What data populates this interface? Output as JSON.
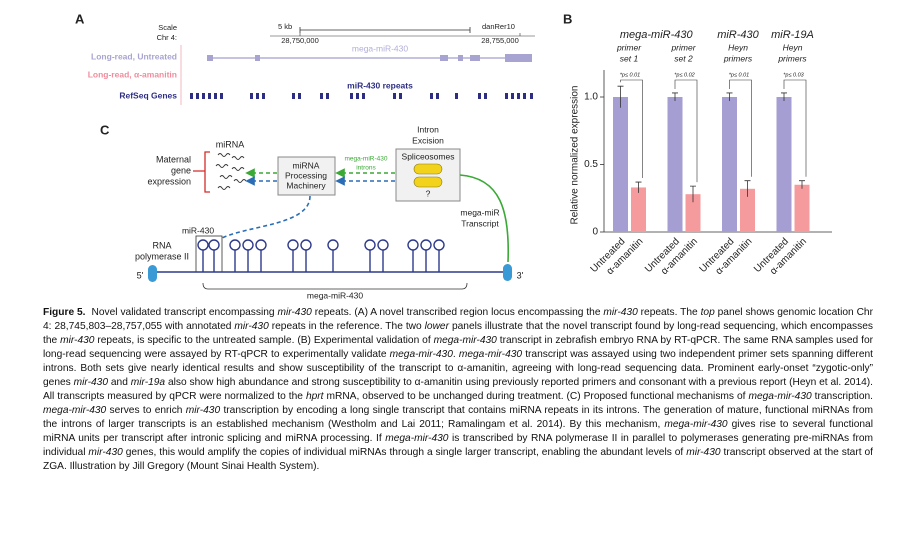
{
  "panel_a": {
    "label": "A",
    "scale": "Scale",
    "chr": "Chr 4:",
    "scale_bar": "5 kb",
    "assembly": "danRer10",
    "positions": [
      "28,750,000",
      "28,755,000"
    ],
    "tracks": [
      "Long-read, Untreated",
      "Long-read, α-amanitin",
      "RefSeq Genes"
    ],
    "features": [
      "mega-miR-430",
      "miR-430 repeats"
    ]
  },
  "chart_data": {
    "type": "bar",
    "label": "B",
    "y_label": "Relative normalized expression",
    "group_titles": [
      "mega-miR-430",
      "miR-430",
      "miR-19A"
    ],
    "group_subtitles": [
      [
        "primer",
        "set 1"
      ],
      [
        "primer",
        "set 2"
      ],
      [
        "Heyn",
        "primers"
      ],
      [
        "Heyn",
        "primers"
      ]
    ],
    "annotations": [
      "*p≤ 0.01",
      "*p≤ 0.02",
      "*p≤ 0.01",
      "*p≤ 0.03"
    ],
    "series": [
      {
        "name": "Untreated",
        "color": "#a49ed2",
        "values": [
          1,
          1,
          1,
          1
        ],
        "errors": [
          0.08,
          0.03,
          0.03,
          0.03
        ]
      },
      {
        "name": "α-amanitin",
        "color": "#f59b9d",
        "values": [
          0.33,
          0.28,
          0.32,
          0.35
        ],
        "errors": [
          0.04,
          0.06,
          0.06,
          0.03
        ]
      }
    ],
    "ylim": [
      0,
      1.2
    ],
    "yticks": [
      0,
      0.5,
      {
        "value": 1,
        "label": "1.0"
      }
    ]
  },
  "panel_c": {
    "label": "C",
    "mirna": "miRNA",
    "maternal": [
      "Maternal",
      "gene",
      "expression"
    ],
    "processing": [
      "miRNA",
      "Processing",
      "Machinery"
    ],
    "introns": [
      "mega-miR-430",
      "introns"
    ],
    "excision": [
      "Intron",
      "Excision"
    ],
    "spliceosomes": "Spliceosomes",
    "unknown": "?",
    "transcript": [
      "mega-miR",
      "Transcript"
    ],
    "mir430": "miR-430",
    "polymerase": [
      "RNA",
      "polymerase II"
    ],
    "five": "5'",
    "three": "3'",
    "gene": "mega-miR-430"
  },
  "caption": {
    "label": "Figure 5.",
    "text": [
      "Novel validated transcript encompassing ",
      "mir-430",
      " repeats. (A) A novel transcribed region locus encompassing the ",
      "mir-430",
      " repeats. The ",
      "top",
      " panel shows genomic location Chr 4: 28,745,803–28,757,055 with annotated ",
      "mir-430",
      " repeats in the reference. The two ",
      "lower",
      " panels illustrate that the novel transcript found by long-read sequencing, which encompasses the ",
      "mir-430",
      " repeats, is specific to the untreated sample. (B) Experimental validation of ",
      "mega-mir-430",
      " transcript in zebrafish embryo RNA by RT-qPCR. The same RNA samples used for long-read sequencing were assayed by RT-qPCR to experimentally validate ",
      "mega-mir-430",
      ". ",
      "mega-mir-430",
      " transcript was assayed using two independent primer sets spanning different introns. Both sets give nearly identical results and show susceptibility of the transcript to α-amanitin, agreeing with long-read sequencing data. Prominent early-onset “zygotic-only” genes ",
      "mir-430",
      " and ",
      "mir-19a",
      " also show high abundance and strong susceptibility to α-amanitin using previously reported primers and consonant with a previous report (Heyn et al. 2014). All transcripts measured by qPCR were normalized to the ",
      "hprt",
      " mRNA, observed to be unchanged during treatment. (C) Proposed functional mechanisms of ",
      "mega-mir-430",
      " transcription. ",
      "mega-mir-430",
      " serves to enrich ",
      "mir-430",
      " transcription by encoding a long single transcript that contains miRNA repeats in its introns. The generation of mature, functional miRNAs from the introns of larger transcripts is an established mechanism (Westholm and Lai 2011; Ramalingam et al. 2014). By this mechanism, ",
      "mega-mir-430",
      " gives rise to several functional miRNA units per transcript after intronic splicing and miRNA processing. If ",
      "mega-mir-430",
      " is transcribed by RNA polymerase II in parallel to polymerases generating pre-miRNAs from individual ",
      "mir-430",
      " genes, this would amplify the copies of individual miRNAs through a single larger transcript, enabling the abundant levels of ",
      "mir-430",
      " transcript observed at the start of ZGA. Illustration by Jill Gregory (Mount Sinai Health System)."
    ]
  }
}
